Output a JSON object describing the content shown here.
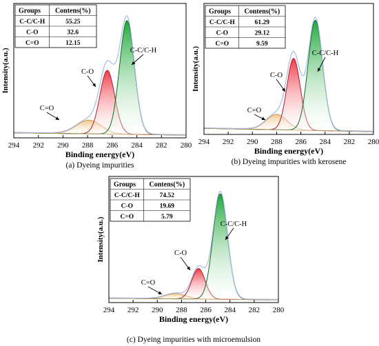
{
  "chart_data": [
    {
      "type": "area",
      "caption": "(a) Dyeing impurities",
      "xlabel": "Binding energy(eV)",
      "ylabel": "Intensity(a.u.)",
      "xlim": [
        294,
        280
      ],
      "x_reversed": true,
      "x_ticks": [
        "294",
        "292",
        "290",
        "288",
        "286",
        "284",
        "282",
        "280"
      ],
      "grid": false,
      "table": {
        "headers": [
          "Groups",
          "Contens(%)"
        ],
        "rows": [
          [
            "C-C/C-H",
            "55.25"
          ],
          [
            "C-O",
            "32.6"
          ],
          [
            "C=O",
            "12.15"
          ]
        ]
      },
      "peaks": [
        {
          "label": "C-C/C-H",
          "center": 284.8,
          "height": 1.0,
          "sigma": 0.6,
          "color": "#1fa83a"
        },
        {
          "label": "C-O",
          "center": 286.4,
          "height": 0.56,
          "sigma": 0.6,
          "color": "#ef3a45"
        },
        {
          "label": "C=O",
          "center": 287.9,
          "height": 0.12,
          "sigma": 1.0,
          "color": "#f2c58a"
        }
      ],
      "baseline": {
        "start": 0.02,
        "end": 0.0
      }
    },
    {
      "type": "area",
      "caption": "(b) Dyeing impurities with kerosene",
      "xlabel": "Binding energy(eV)",
      "ylabel": "Intensity(a.u.)",
      "xlim": [
        294,
        280
      ],
      "x_reversed": true,
      "x_ticks": [
        "294",
        "292",
        "290",
        "288",
        "286",
        "284",
        "282",
        "280"
      ],
      "grid": false,
      "table": {
        "headers": [
          "Groups",
          "Contens(%)"
        ],
        "rows": [
          [
            "C-C/C-H",
            "61.29"
          ],
          [
            "C-O",
            "29.12"
          ],
          [
            "C=O",
            "9.59"
          ]
        ]
      },
      "peaks": [
        {
          "label": "C-C/C-H",
          "center": 284.8,
          "height": 1.0,
          "sigma": 0.6,
          "color": "#1fa83a"
        },
        {
          "label": "C-O",
          "center": 286.6,
          "height": 0.65,
          "sigma": 0.55,
          "color": "#ef3a45"
        },
        {
          "label": "C=O",
          "center": 288.0,
          "height": 0.14,
          "sigma": 0.85,
          "color": "#f2c58a"
        }
      ],
      "baseline": {
        "start": 0.03,
        "end": 0.0
      }
    },
    {
      "type": "area",
      "caption": "(c) Dyeing impurities with microemulsion",
      "xlabel": "Binding energy(eV)",
      "ylabel": "Intensity(a.u.)",
      "xlim": [
        294,
        280
      ],
      "x_reversed": true,
      "x_ticks": [
        "294",
        "292",
        "290",
        "288",
        "286",
        "284",
        "282",
        "280"
      ],
      "grid": false,
      "table": {
        "headers": [
          "Groups",
          "Contens(%)"
        ],
        "rows": [
          [
            "C-C/C-H",
            "74.52"
          ],
          [
            "C-O",
            "19.69"
          ],
          [
            "C=O",
            "5.79"
          ]
        ]
      },
      "peaks": [
        {
          "label": "C-C/C-H",
          "center": 284.8,
          "height": 1.0,
          "sigma": 0.6,
          "color": "#1fa83a"
        },
        {
          "label": "C-O",
          "center": 286.6,
          "height": 0.29,
          "sigma": 0.55,
          "color": "#ef3a45"
        },
        {
          "label": "C=O",
          "center": 288.5,
          "height": 0.05,
          "sigma": 0.85,
          "color": "#f2c58a"
        }
      ],
      "baseline": {
        "start": 0.015,
        "end": 0.0
      }
    }
  ]
}
